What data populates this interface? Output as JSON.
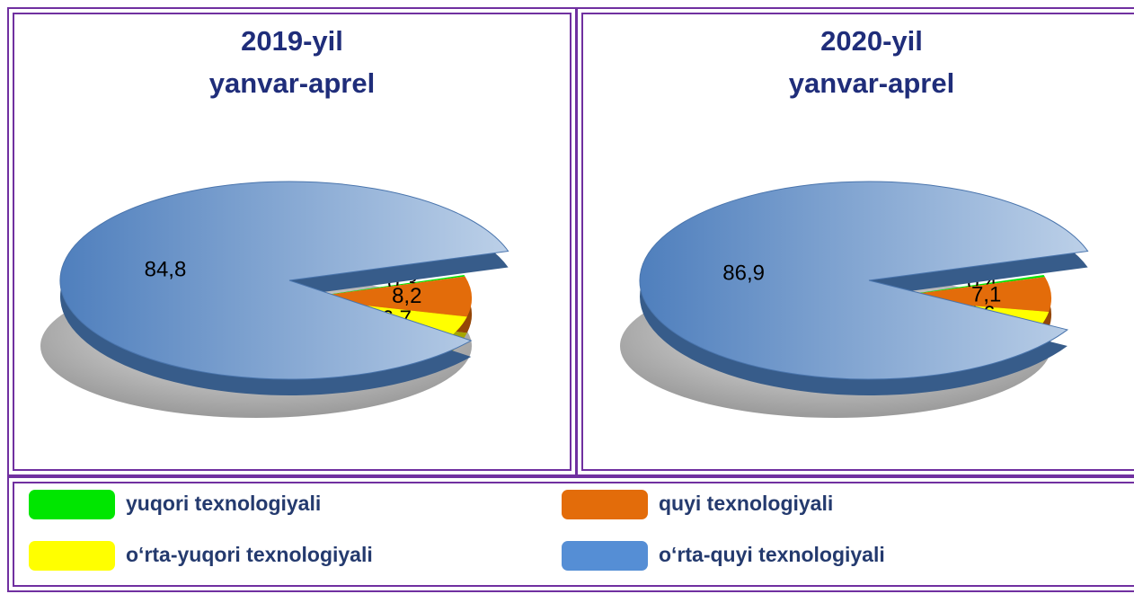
{
  "chart_data": [
    {
      "type": "pie",
      "title": "2019-yil",
      "subtitle": "yanvar-aprel",
      "categories": [
        "yuqori texnologiyali",
        "quyi texnologiyali",
        "o‘rta-yuqori texnologiyali",
        "o‘rta-quyi texnologiyali"
      ],
      "values": [
        0.3,
        8.2,
        6.7,
        84.8
      ],
      "value_labels": [
        "0,3",
        "8,2",
        "6,7",
        "84,8"
      ],
      "colors": [
        "#00e600",
        "#e36c0a",
        "#ffff00",
        "#558ed5"
      ]
    },
    {
      "type": "pie",
      "title": "2020-yil",
      "subtitle": "yanvar-aprel",
      "categories": [
        "yuqori texnologiyali",
        "quyi texnologiyali",
        "o‘rta-yuqori texnologiyali",
        "o‘rta-quyi texnologiyali"
      ],
      "values": [
        0.4,
        7.1,
        5.6,
        86.9
      ],
      "value_labels": [
        "0,4",
        "7,1",
        "5,6",
        "86,9"
      ],
      "colors": [
        "#00e600",
        "#e36c0a",
        "#ffff00",
        "#558ed5"
      ]
    }
  ]
}
